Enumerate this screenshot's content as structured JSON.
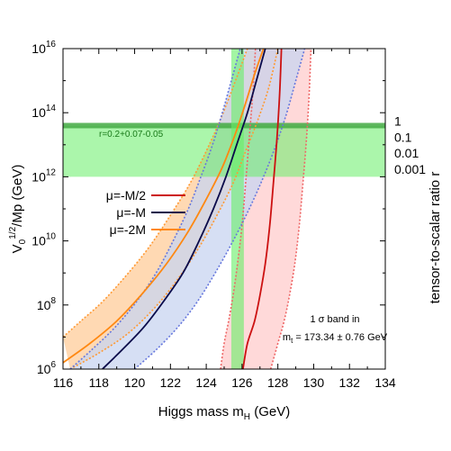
{
  "chart_data": {
    "type": "line",
    "xlabel_main": "Higgs mass m",
    "xlabel_sub": "H",
    "xlabel_unit": " (GeV)",
    "ylabel_pre": "V",
    "ylabel_sub": "0",
    "ylabel_sup": "1/2",
    "ylabel_post": "/Mp (GeV)",
    "y2label": "tensor-to-scalar ratio r",
    "xlim": [
      116,
      134
    ],
    "ylog_lim": [
      6,
      16
    ],
    "y_scale": "log",
    "x_ticks": [
      "116",
      "118",
      "120",
      "122",
      "124",
      "126",
      "128",
      "130",
      "132",
      "134"
    ],
    "y_ticks": [
      {
        "exp": "6",
        "value": 6
      },
      {
        "exp": "8",
        "value": 8
      },
      {
        "exp": "10",
        "value": 10
      },
      {
        "exp": "12",
        "value": 12
      },
      {
        "exp": "14",
        "value": 14
      },
      {
        "exp": "16",
        "value": 16
      }
    ],
    "r_ticks": [
      {
        "label": "1",
        "ylog": 13.74
      },
      {
        "label": "0.1",
        "ylog": 13.24
      },
      {
        "label": "0.01",
        "ylog": 12.74
      },
      {
        "label": "0.001",
        "ylog": 12.24
      }
    ],
    "horizontal_band": {
      "ylog_low": 12.0,
      "ylog_high": 13.6,
      "line_ylog": 13.6,
      "label": "r=0.2+0.07-0.05",
      "color": "#66ee66"
    },
    "vertical_band": {
      "x_low": 125.4,
      "x_high": 126.1,
      "color": "#66ee66"
    },
    "base": "10",
    "series": [
      {
        "name": "μ=-M/2",
        "color": "#cc1111",
        "band_color": "#ffcccc",
        "band_edge_color": "#ee6666",
        "central": [
          [
            126.05,
            6.0
          ],
          [
            126.3,
            6.8
          ],
          [
            126.7,
            7.5
          ],
          [
            127.0,
            8.3
          ],
          [
            127.3,
            9.3
          ],
          [
            127.55,
            10.5
          ],
          [
            127.75,
            11.8
          ],
          [
            127.95,
            13.2
          ],
          [
            128.1,
            14.6
          ],
          [
            128.2,
            16.0
          ]
        ],
        "lower": [
          [
            124.8,
            6.0
          ],
          [
            125.0,
            6.8
          ],
          [
            125.25,
            7.5
          ],
          [
            125.5,
            8.3
          ],
          [
            125.75,
            9.3
          ],
          [
            126.0,
            10.5
          ],
          [
            126.2,
            11.8
          ],
          [
            126.4,
            13.2
          ],
          [
            126.6,
            14.6
          ],
          [
            126.75,
            16.0
          ]
        ],
        "upper": [
          [
            127.6,
            6.0
          ],
          [
            128.0,
            6.8
          ],
          [
            128.35,
            7.5
          ],
          [
            128.65,
            8.3
          ],
          [
            128.95,
            9.3
          ],
          [
            129.2,
            10.5
          ],
          [
            129.4,
            11.8
          ],
          [
            129.6,
            13.2
          ],
          [
            129.75,
            14.6
          ],
          [
            129.85,
            16.0
          ]
        ]
      },
      {
        "name": "μ=-M",
        "color": "#0a0a4a",
        "band_color": "#c8d4f0",
        "band_edge_color": "#6677dd",
        "central": [
          [
            118.2,
            6.0
          ],
          [
            119.3,
            6.6
          ],
          [
            120.5,
            7.3
          ],
          [
            121.6,
            8.1
          ],
          [
            122.7,
            9.0
          ],
          [
            123.6,
            10.0
          ],
          [
            124.4,
            11.0
          ],
          [
            125.1,
            12.0
          ],
          [
            125.7,
            13.0
          ],
          [
            126.3,
            14.0
          ],
          [
            126.8,
            15.0
          ],
          [
            127.3,
            16.0
          ]
        ],
        "lower": [
          [
            116.4,
            6.0
          ],
          [
            117.6,
            6.6
          ],
          [
            118.9,
            7.3
          ],
          [
            120.1,
            8.1
          ],
          [
            121.2,
            9.0
          ],
          [
            122.15,
            10.0
          ],
          [
            123.0,
            11.0
          ],
          [
            123.7,
            12.0
          ],
          [
            124.35,
            13.0
          ],
          [
            124.9,
            14.0
          ],
          [
            125.4,
            15.0
          ],
          [
            125.9,
            16.0
          ]
        ],
        "upper": [
          [
            120.0,
            6.0
          ],
          [
            121.2,
            6.6
          ],
          [
            122.4,
            7.3
          ],
          [
            123.5,
            8.1
          ],
          [
            124.5,
            9.0
          ],
          [
            125.5,
            10.0
          ],
          [
            126.4,
            11.0
          ],
          [
            127.2,
            12.0
          ],
          [
            127.9,
            13.0
          ],
          [
            128.5,
            14.0
          ],
          [
            129.0,
            15.0
          ],
          [
            129.5,
            16.0
          ]
        ]
      },
      {
        "name": "μ=-2M",
        "color": "#ff8811",
        "band_color": "#ffcc99",
        "band_edge_color": "#ff9933",
        "central": [
          [
            116.0,
            6.2
          ],
          [
            117.5,
            6.8
          ],
          [
            119.0,
            7.5
          ],
          [
            120.5,
            8.4
          ],
          [
            121.8,
            9.3
          ],
          [
            123.0,
            10.3
          ],
          [
            124.0,
            11.3
          ],
          [
            124.9,
            12.3
          ],
          [
            125.6,
            13.3
          ],
          [
            126.2,
            14.3
          ],
          [
            126.7,
            15.2
          ],
          [
            127.2,
            16.0
          ]
        ],
        "lower": [
          [
            116.0,
            7.0
          ],
          [
            117.0,
            7.5
          ],
          [
            118.2,
            8.1
          ],
          [
            119.5,
            8.9
          ],
          [
            120.8,
            9.8
          ],
          [
            122.0,
            10.8
          ],
          [
            123.1,
            11.8
          ],
          [
            124.0,
            12.8
          ],
          [
            124.8,
            13.8
          ],
          [
            125.5,
            14.8
          ],
          [
            126.1,
            15.7
          ],
          [
            126.3,
            16.0
          ]
        ],
        "upper": [
          [
            116.4,
            6.0
          ],
          [
            118.0,
            6.5
          ],
          [
            119.6,
            7.1
          ],
          [
            121.1,
            7.9
          ],
          [
            122.4,
            8.8
          ],
          [
            123.6,
            9.8
          ],
          [
            124.6,
            10.8
          ],
          [
            125.5,
            11.8
          ],
          [
            126.2,
            12.8
          ],
          [
            126.9,
            13.8
          ],
          [
            127.5,
            14.8
          ],
          [
            128.0,
            16.0
          ]
        ]
      }
    ],
    "annotation_line1": "1 σ band in",
    "annotation_line2_pre": "m",
    "annotation_line2_sub": "t",
    "annotation_line2_post": " = 173.34 ± 0.76 GeV"
  }
}
